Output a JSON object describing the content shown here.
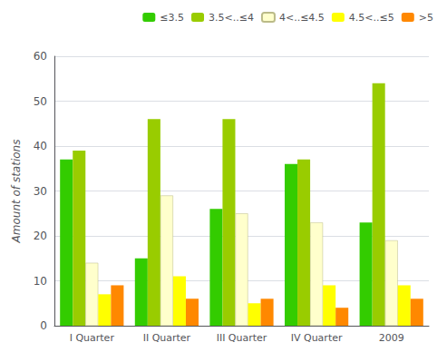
{
  "chart_data": {
    "type": "bar",
    "categories": [
      "I Quarter",
      "II Quarter",
      "III Quarter",
      "IV Quarter",
      "2009"
    ],
    "series": [
      {
        "name": "≤3.5",
        "color": "#33cc00",
        "values": [
          37,
          15,
          26,
          36,
          23
        ]
      },
      {
        "name": "3.5<..≤4",
        "color": "#99cc00",
        "values": [
          39,
          46,
          46,
          37,
          54
        ]
      },
      {
        "name": "4<..≤4.5",
        "color": "#ffffcc",
        "values": [
          14,
          29,
          25,
          23,
          19
        ]
      },
      {
        "name": "4.5<..≤5",
        "color": "#ffff00",
        "values": [
          7,
          11,
          5,
          9,
          9
        ]
      },
      {
        "name": ">5",
        "color": "#ff8800",
        "values": [
          9,
          6,
          6,
          4,
          6
        ]
      }
    ],
    "ylabel": "Amount of stations",
    "ylim": [
      0,
      60
    ],
    "yticks": [
      0,
      10,
      20,
      30,
      40,
      50,
      60
    ],
    "grid": true,
    "legend": "upper right"
  }
}
